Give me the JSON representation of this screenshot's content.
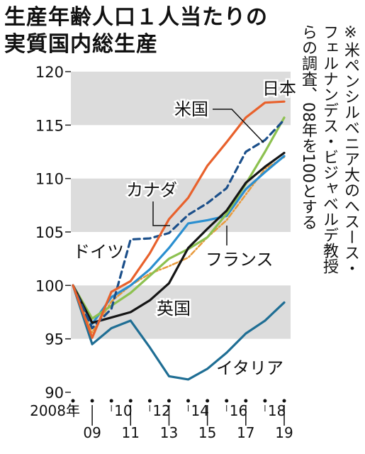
{
  "title_lines": [
    "生産年齢人口１人当たりの",
    "実質国内総生産"
  ],
  "note_lines": [
    "※米ペンシルベニア大のへスース・",
    "フェルナンデス・ビジャベルデ教授",
    "らの調査、08年を100とする"
  ],
  "chart_data": {
    "type": "line",
    "title": "生産年齢人口１人当たりの実質国内総生産",
    "xlabel": "",
    "ylabel": "",
    "x": [
      2008,
      2009,
      2010,
      2011,
      2012,
      2013,
      2014,
      2015,
      2016,
      2017,
      2018,
      2019
    ],
    "x_tick_labels": [
      {
        "x": 2008,
        "label": "2008年",
        "row": "top"
      },
      {
        "x": 2009,
        "label": "09",
        "row": "bottom"
      },
      {
        "x": 2010,
        "label": "10",
        "row": "top"
      },
      {
        "x": 2011,
        "label": "11",
        "row": "bottom"
      },
      {
        "x": 2012,
        "label": "12",
        "row": "top"
      },
      {
        "x": 2013,
        "label": "13",
        "row": "bottom"
      },
      {
        "x": 2014,
        "label": "14",
        "row": "top"
      },
      {
        "x": 2015,
        "label": "15",
        "row": "bottom"
      },
      {
        "x": 2016,
        "label": "16",
        "row": "top"
      },
      {
        "x": 2017,
        "label": "17",
        "row": "bottom"
      },
      {
        "x": 2018,
        "label": "18",
        "row": "top"
      },
      {
        "x": 2019,
        "label": "19",
        "row": "bottom"
      }
    ],
    "ylim": [
      90,
      120
    ],
    "yticks": [
      90,
      95,
      100,
      105,
      110,
      115,
      120
    ],
    "grid": "alternating horizontal bands",
    "legend": "direct labels next to lines",
    "series": [
      {
        "name": "日本",
        "color": "#e8612c",
        "dash": "solid",
        "values": [
          100,
          95.1,
          99.4,
          100.4,
          103.0,
          106.2,
          108.2,
          111.2,
          113.4,
          115.7,
          117.1,
          117.2
        ]
      },
      {
        "name": "米国",
        "color": "#1b4f8a",
        "dash": "dashed",
        "values": [
          100,
          96.0,
          97.8,
          104.3,
          104.4,
          104.9,
          106.6,
          107.7,
          109.1,
          112.5,
          113.6,
          115.5
        ]
      },
      {
        "name": "カナダ",
        "color": "#2a8fd0",
        "dash": "solid",
        "values": [
          100,
          96.4,
          98.9,
          100.0,
          101.5,
          103.5,
          105.8,
          106.1,
          106.5,
          109.0,
          110.6,
          112.1
        ]
      },
      {
        "name": "ドイツ",
        "color": "#8dc150",
        "dash": "solid",
        "values": [
          100,
          96.9,
          98.1,
          99.3,
          100.9,
          102.5,
          103.4,
          104.5,
          106.7,
          109.5,
          112.5,
          115.7
        ]
      },
      {
        "name": "フランス",
        "color": "#e89a3c",
        "dash": "dashdot",
        "values": [
          100,
          95.6,
          98.5,
          100.0,
          101.1,
          101.8,
          102.6,
          104.5,
          106.1,
          108.5,
          110.9,
          112.0
        ]
      },
      {
        "name": "英国",
        "color": "#151515",
        "dash": "solid",
        "values": [
          100,
          96.5,
          97.0,
          97.5,
          98.6,
          100.2,
          103.5,
          105.3,
          107.0,
          109.6,
          111.1,
          112.4
        ]
      },
      {
        "name": "イタリア",
        "color": "#1f6e94",
        "dash": "solid",
        "values": [
          100,
          94.5,
          96.0,
          96.7,
          94.2,
          91.5,
          91.2,
          92.2,
          93.7,
          95.5,
          96.7,
          98.4
        ]
      }
    ]
  }
}
